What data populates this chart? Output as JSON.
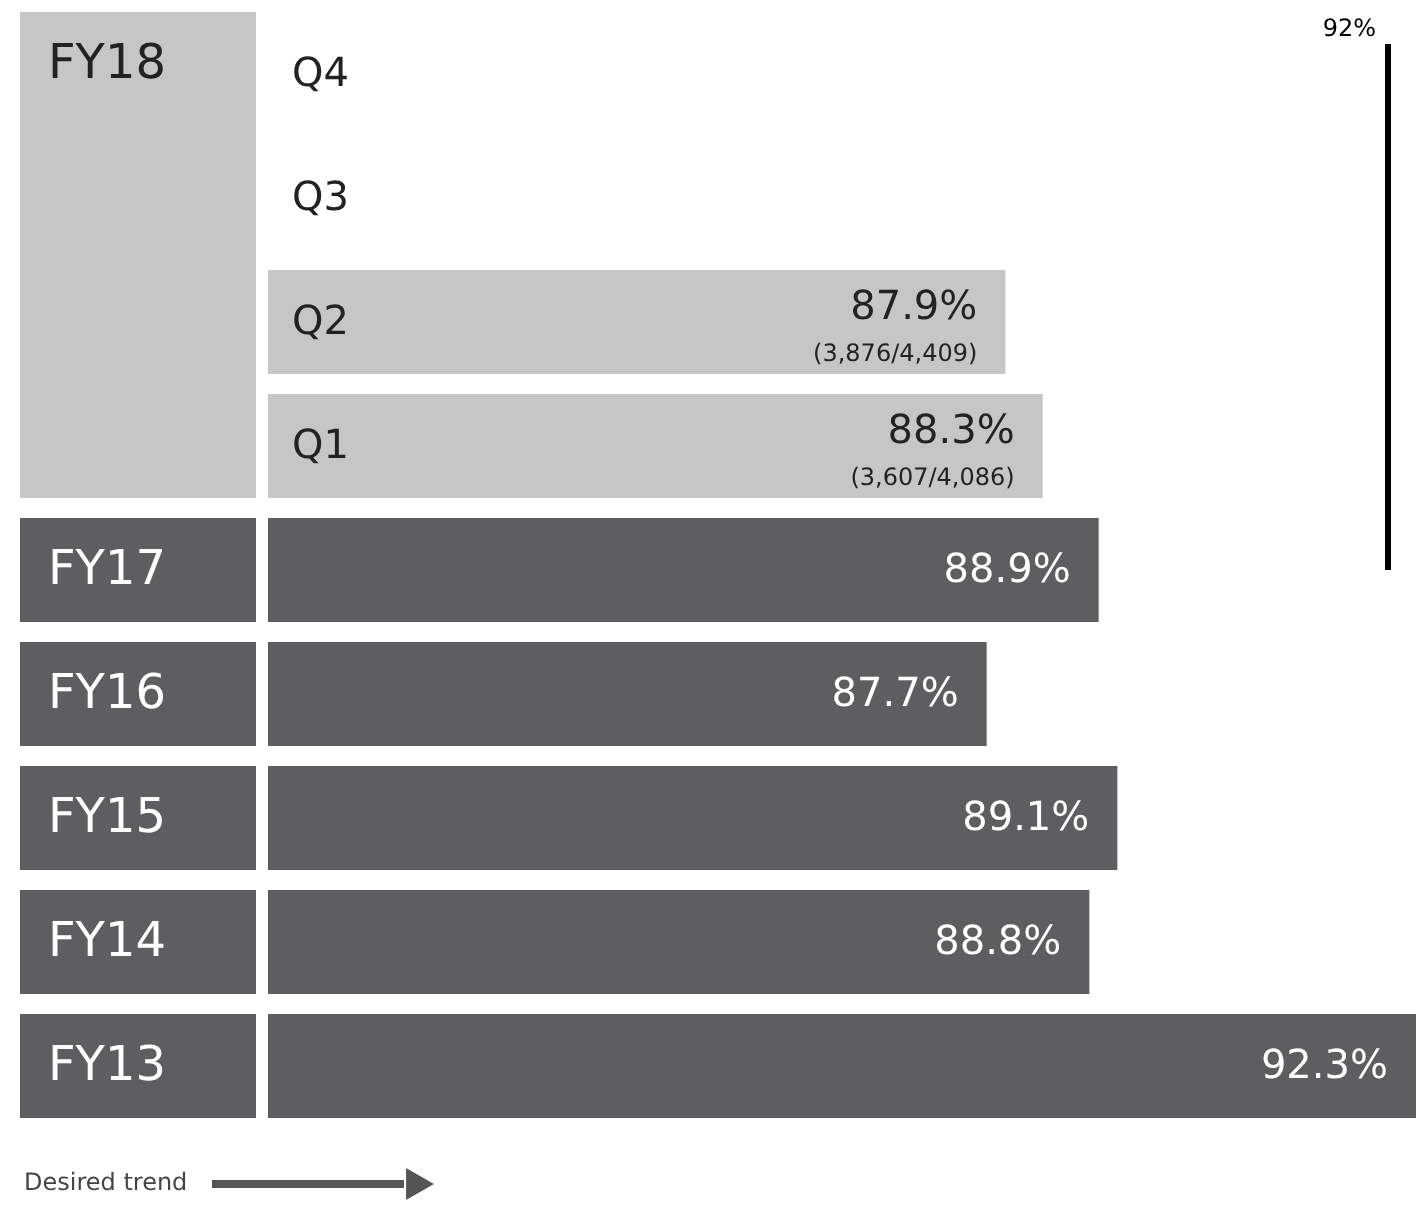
{
  "chart_data": {
    "type": "bar",
    "orientation": "horizontal",
    "categories": [
      "Q4",
      "Q3",
      "Q2",
      "Q1",
      "FY17",
      "FY16",
      "FY15",
      "FY14",
      "FY13"
    ],
    "values": [
      null,
      null,
      87.9,
      88.3,
      88.9,
      87.7,
      89.1,
      88.8,
      92.3
    ],
    "value_labels": [
      null,
      null,
      "87.9%\n(3,876/4,409)",
      "88.3%\n(3,607/4,086)",
      "88.9%",
      "87.7%",
      "89.1%",
      "88.8%",
      "92.3%"
    ],
    "colors": [
      "#c6c6c6",
      "#c6c6c6",
      "#c6c6c6",
      "#c6c6c6",
      "#5e5e60",
      "#5e5e60",
      "#5e5e60",
      "#5e5e60",
      "#5e5e60"
    ],
    "xlim": [
      80,
      92.3
    ],
    "ref_lines": [
      {
        "axis": "x",
        "value": 92,
        "label": "92%",
        "color": "#000000"
      }
    ],
    "annotations": [
      "FY18",
      "Desired trend"
    ]
  }
}
